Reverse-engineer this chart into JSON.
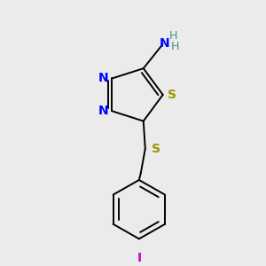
{
  "bg_color": "#ebebeb",
  "atom_colors": {
    "N": "#0000ff",
    "S": "#999900",
    "C": "#000000",
    "I": "#cc00cc",
    "NH_H": "#409090"
  },
  "bond_color": "#000000",
  "lw": 1.4
}
